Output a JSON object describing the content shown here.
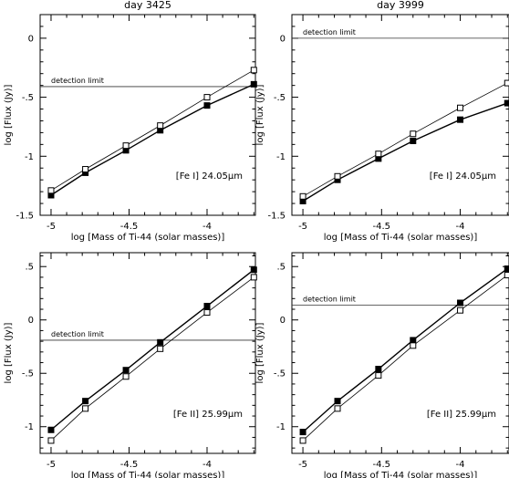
{
  "chart_data": [
    {
      "type": "line",
      "title": "day 3425",
      "xlabel": "log [Mass of Ti-44 (solar masses)]",
      "ylabel": "log [Flux (Jy)]",
      "annotation": "[Fe I] 24.05μm",
      "xlim": [
        -5.07,
        -3.69
      ],
      "ylim": [
        -1.5,
        0.2
      ],
      "xticks": [
        -5,
        -4.5,
        -4
      ],
      "xtick_labels": [
        "-5",
        "-4.5",
        "-4"
      ],
      "yticks": [
        -1.5,
        -1,
        -0.5,
        0
      ],
      "ytick_labels": [
        "-1.5",
        "-1",
        "-.5",
        "0"
      ],
      "detection_limit": {
        "label": "detection limit",
        "y": -0.41
      },
      "x": [
        -5.0,
        -4.78,
        -4.52,
        -4.3,
        -4.0,
        -3.7
      ],
      "series": [
        {
          "marker": "filled-square",
          "values": [
            -1.33,
            -1.14,
            -0.95,
            -0.78,
            -0.57,
            -0.39
          ]
        },
        {
          "marker": "open-square",
          "values": [
            -1.29,
            -1.11,
            -0.91,
            -0.74,
            -0.5,
            -0.27
          ]
        }
      ]
    },
    {
      "type": "line",
      "title": "day 3999",
      "xlabel": "log [Mass of Ti-44 (solar masses)]",
      "ylabel": "log [Flux (Jy)]",
      "annotation": "[Fe I] 24.05μm",
      "xlim": [
        -5.07,
        -3.69
      ],
      "ylim": [
        -1.5,
        0.2
      ],
      "xticks": [
        -5,
        -4.5,
        -4
      ],
      "xtick_labels": [
        "-5",
        "-4.5",
        "-4"
      ],
      "yticks": [
        -1.5,
        -1,
        -0.5,
        0
      ],
      "ytick_labels": [
        "-1.5",
        "-1",
        "-.5",
        "0"
      ],
      "detection_limit": {
        "label": "detection limit",
        "y": 0.0
      },
      "x": [
        -5.0,
        -4.78,
        -4.52,
        -4.3,
        -4.0,
        -3.7
      ],
      "series": [
        {
          "marker": "filled-square",
          "values": [
            -1.38,
            -1.2,
            -1.02,
            -0.87,
            -0.69,
            -0.55
          ]
        },
        {
          "marker": "open-square",
          "values": [
            -1.34,
            -1.17,
            -0.98,
            -0.81,
            -0.59,
            -0.38
          ]
        }
      ]
    },
    {
      "type": "line",
      "title": "",
      "xlabel": "log [Mass of Ti-44 (solar masses)]",
      "ylabel": "log [Flux (Jy)]",
      "annotation": "[Fe II] 25.99μm",
      "xlim": [
        -5.07,
        -3.69
      ],
      "ylim": [
        -1.25,
        0.63
      ],
      "xticks": [
        -5,
        -4.5,
        -4
      ],
      "xtick_labels": [
        "-5",
        "-4.5",
        "-4"
      ],
      "yticks": [
        -1,
        -0.5,
        0,
        0.5
      ],
      "ytick_labels": [
        "-1",
        "-.5",
        "0",
        ".5"
      ],
      "detection_limit": {
        "label": "detection limit",
        "y": -0.19
      },
      "x": [
        -5.0,
        -4.78,
        -4.52,
        -4.3,
        -4.0,
        -3.7
      ],
      "series": [
        {
          "marker": "filled-square",
          "values": [
            -1.03,
            -0.76,
            -0.47,
            -0.21,
            0.13,
            0.47
          ]
        },
        {
          "marker": "open-square",
          "values": [
            -1.13,
            -0.83,
            -0.53,
            -0.27,
            0.07,
            0.4
          ]
        }
      ]
    },
    {
      "type": "line",
      "title": "",
      "xlabel": "log [Mass of Ti-44 (solar masses)]",
      "ylabel": "log [Flux (Jy)]",
      "annotation": "[Fe II] 25.99μm",
      "xlim": [
        -5.07,
        -3.69
      ],
      "ylim": [
        -1.25,
        0.63
      ],
      "xticks": [
        -5,
        -4.5,
        -4
      ],
      "xtick_labels": [
        "-5",
        "-4.5",
        "-4"
      ],
      "yticks": [
        -1,
        -0.5,
        0,
        0.5
      ],
      "ytick_labels": [
        "-1",
        "-.5",
        "0",
        ".5"
      ],
      "detection_limit": {
        "label": "detection limit",
        "y": 0.14
      },
      "x": [
        -5.0,
        -4.78,
        -4.52,
        -4.3,
        -4.0,
        -3.7
      ],
      "series": [
        {
          "marker": "filled-square",
          "values": [
            -1.05,
            -0.76,
            -0.46,
            -0.19,
            0.16,
            0.48
          ]
        },
        {
          "marker": "open-square",
          "values": [
            -1.13,
            -0.83,
            -0.52,
            -0.24,
            0.09,
            0.42
          ]
        }
      ]
    }
  ]
}
